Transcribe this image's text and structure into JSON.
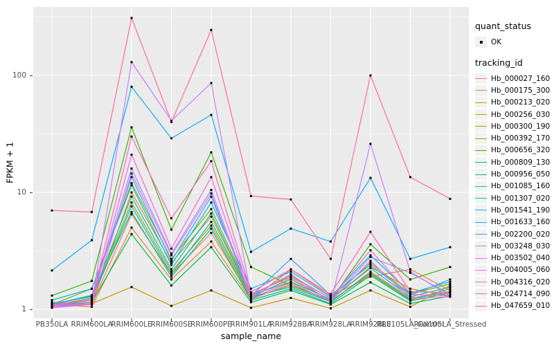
{
  "figure": {
    "panel_background": "#EBEBEB",
    "gridline_color": "#FFFFFF",
    "tick_text_color": "#4D4D4D",
    "point_color": "#000000",
    "key_background": "#F2F2F2"
  },
  "legend": {
    "quant_status_title": "quant_status",
    "quant_status_items": [
      "OK"
    ],
    "tracking_id_title": "tracking_id"
  },
  "chart_data": {
    "type": "line",
    "title": "",
    "xlabel": "sample_name",
    "ylabel": "FPKM + 1",
    "y_scale": "log10",
    "y_ticks": [
      1,
      10,
      100
    ],
    "y_minor_ticks": [
      3.162,
      31.62,
      316.2
    ],
    "ylim": [
      0.84,
      385
    ],
    "grid": true,
    "legend_position": "right",
    "point_marker": "black-dot",
    "categories": [
      "PB350LA",
      "RRIM600LA",
      "RRIM600LE",
      "RRIM600SE",
      "RRIM600PE",
      "RRIM901LA",
      "RRIM928BA",
      "RRIM928LA",
      "RRIM928LE",
      "RRII105LA_Control",
      "RRII105LA_Stressed"
    ],
    "series": [
      {
        "name": "Hb_000027_160",
        "color": "#F8766D",
        "values": [
          1.05,
          1.1,
          6.5,
          2.0,
          4.5,
          1.25,
          1.7,
          1.15,
          2.1,
          1.25,
          1.4
        ]
      },
      {
        "name": "Hb_000175_300",
        "color": "#EA8331",
        "values": [
          1.1,
          1.05,
          5.0,
          1.8,
          3.8,
          1.2,
          2.2,
          1.3,
          1.9,
          2.2,
          1.45
        ]
      },
      {
        "name": "Hb_000213_020",
        "color": "#D89000",
        "values": [
          1.15,
          1.1,
          10,
          2.5,
          6.2,
          1.3,
          1.8,
          1.2,
          2.3,
          1.5,
          1.3
        ]
      },
      {
        "name": "Hb_000256_030",
        "color": "#C09B00",
        "values": [
          1.05,
          1.12,
          1.55,
          1.07,
          1.45,
          1.03,
          1.25,
          1.02,
          1.45,
          1.05,
          1.6
        ]
      },
      {
        "name": "Hb_000300_190",
        "color": "#A3A500",
        "values": [
          1.08,
          1.25,
          8.2,
          2.1,
          5.2,
          1.25,
          1.6,
          1.18,
          2.0,
          1.2,
          1.5
        ]
      },
      {
        "name": "Hb_000392_170",
        "color": "#7CAE00",
        "values": [
          1.1,
          1.5,
          12,
          2.7,
          7.2,
          1.35,
          1.9,
          1.25,
          2.5,
          1.35,
          1.65
        ]
      },
      {
        "name": "Hb_000656_320",
        "color": "#39B600",
        "values": [
          1.31,
          1.75,
          36,
          4.8,
          22,
          2.3,
          1.6,
          1.2,
          3.6,
          1.8,
          2.3
        ]
      },
      {
        "name": "Hb_000809_130",
        "color": "#00BB4E",
        "values": [
          1.05,
          1.15,
          4.4,
          1.6,
          3.4,
          1.15,
          1.45,
          1.1,
          1.7,
          1.12,
          1.3
        ]
      },
      {
        "name": "Hb_000956_050",
        "color": "#00BF7D",
        "values": [
          1.1,
          1.3,
          6.8,
          1.9,
          4.9,
          1.2,
          1.5,
          1.12,
          1.95,
          1.18,
          1.38
        ]
      },
      {
        "name": "Hb_001085_160",
        "color": "#00C1A3",
        "values": [
          1.06,
          1.2,
          7.6,
          2.0,
          5.6,
          1.28,
          1.55,
          1.16,
          2.05,
          1.22,
          1.42
        ]
      },
      {
        "name": "Hb_001307_020",
        "color": "#00BFC4",
        "values": [
          1.12,
          1.28,
          9.2,
          2.2,
          6.6,
          1.32,
          1.72,
          1.22,
          2.25,
          1.28,
          1.55
        ]
      },
      {
        "name": "Hb_001541_190",
        "color": "#00BAE0",
        "values": [
          1.2,
          1.5,
          11.5,
          2.4,
          8.2,
          1.5,
          2.1,
          1.28,
          2.9,
          1.38,
          1.72
        ]
      },
      {
        "name": "Hb_001633_160",
        "color": "#00B0F6",
        "values": [
          2.15,
          3.9,
          80,
          29,
          46,
          3.1,
          4.9,
          3.8,
          13.3,
          2.7,
          3.4
        ]
      },
      {
        "name": "Hb_002200_020",
        "color": "#35A2FF",
        "values": [
          1.1,
          1.32,
          13.5,
          2.6,
          9.2,
          1.3,
          2.7,
          1.32,
          2.4,
          1.32,
          1.8
        ]
      },
      {
        "name": "Hb_003248_030",
        "color": "#9590FF",
        "values": [
          1.07,
          1.22,
          16,
          3.0,
          10.5,
          1.27,
          1.85,
          1.2,
          2.8,
          2.05,
          1.35
        ]
      },
      {
        "name": "Hb_003502_040",
        "color": "#C77CFF",
        "values": [
          1.05,
          1.12,
          130,
          41,
          86,
          1.3,
          2.0,
          1.15,
          26,
          2.1,
          1.3
        ]
      },
      {
        "name": "Hb_004005_060",
        "color": "#E76BF3",
        "values": [
          1.03,
          1.1,
          14.5,
          2.9,
          9.8,
          1.22,
          1.65,
          1.17,
          2.6,
          1.24,
          1.28
        ]
      },
      {
        "name": "Hb_004316_020",
        "color": "#FA62DB",
        "values": [
          1.06,
          1.16,
          21,
          3.3,
          13.5,
          1.33,
          1.95,
          1.24,
          3.2,
          1.34,
          1.3
        ]
      },
      {
        "name": "Hb_024714_090",
        "color": "#FF62BC",
        "values": [
          1.1,
          1.2,
          30,
          6.0,
          18.5,
          1.4,
          2.2,
          1.35,
          4.6,
          1.42,
          1.38
        ]
      },
      {
        "name": "Hb_047659_010",
        "color": "#FF6A98",
        "values": [
          7.0,
          6.8,
          310,
          40,
          245,
          9.3,
          8.7,
          2.7,
          100,
          13.5,
          8.8
        ]
      }
    ]
  }
}
